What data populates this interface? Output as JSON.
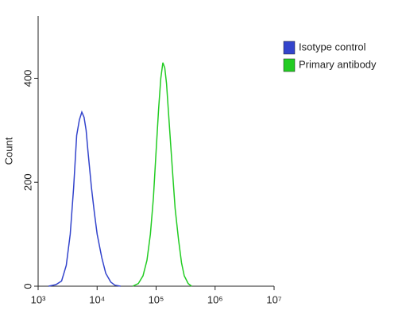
{
  "chart_data": {
    "type": "line",
    "ylabel": "Count",
    "xscale": "log",
    "xlim": [
      1000,
      10000000
    ],
    "ylim": [
      0,
      520
    ],
    "xticks": [
      {
        "value": 1000,
        "label": "10³"
      },
      {
        "value": 10000,
        "label": "10⁴"
      },
      {
        "value": 100000,
        "label": "10⁵"
      },
      {
        "value": 1000000,
        "label": "10⁶"
      },
      {
        "value": 10000000,
        "label": "10⁷"
      }
    ],
    "yticks": [
      0,
      200,
      400
    ],
    "legend": "upper right",
    "series": [
      {
        "name": "Isotype control",
        "color": "#3344cc",
        "x": [
          1500,
          2000,
          2500,
          3000,
          3500,
          4000,
          4500,
          5000,
          5500,
          6000,
          6500,
          7000,
          8000,
          9000,
          10000,
          12000,
          14000,
          17000,
          20000,
          25000
        ],
        "values": [
          0,
          3,
          10,
          40,
          100,
          190,
          290,
          320,
          335,
          325,
          300,
          260,
          190,
          140,
          100,
          55,
          25,
          8,
          2,
          0
        ]
      },
      {
        "name": "Primary antibody",
        "color": "#22cc22",
        "x": [
          40000,
          50000,
          60000,
          70000,
          80000,
          90000,
          100000,
          110000,
          120000,
          130000,
          140000,
          150000,
          170000,
          190000,
          210000,
          240000,
          270000,
          300000,
          350000,
          400000
        ],
        "values": [
          0,
          5,
          20,
          50,
          100,
          170,
          260,
          340,
          400,
          430,
          420,
          390,
          300,
          220,
          150,
          90,
          45,
          20,
          5,
          0
        ]
      }
    ]
  }
}
